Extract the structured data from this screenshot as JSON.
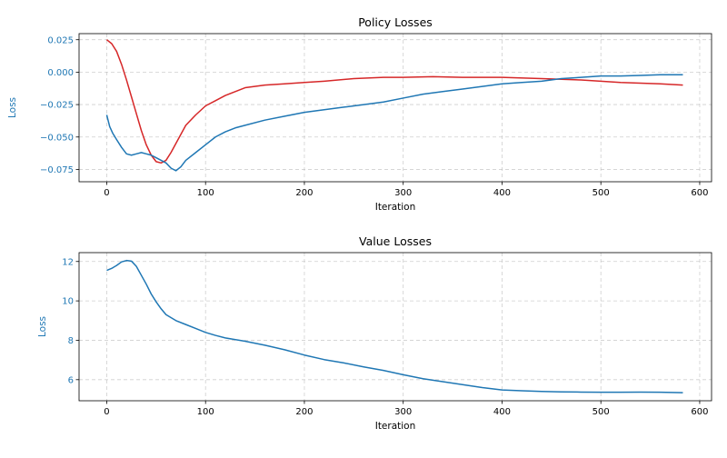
{
  "chart_data": [
    {
      "type": "line",
      "title": "Policy Losses",
      "xlabel": "Iteration",
      "ylabel": "Loss",
      "xlim": [
        -28,
        612
      ],
      "ylim": [
        -0.0845,
        0.0297
      ],
      "xticks": [
        "0",
        "100",
        "200",
        "300",
        "400",
        "500",
        "600"
      ],
      "xtick_values": [
        0,
        100,
        200,
        300,
        400,
        500,
        600
      ],
      "yticks": [
        "−0.075",
        "−0.050",
        "−0.025",
        "0.000",
        "0.025"
      ],
      "ytick_values": [
        -0.075,
        -0.05,
        -0.025,
        0.0,
        0.025
      ],
      "grid": true,
      "ytick_color": "#1f77b4",
      "series": [
        {
          "color": "#d62728",
          "x": [
            0,
            5,
            10,
            15,
            20,
            25,
            30,
            35,
            40,
            45,
            50,
            55,
            60,
            65,
            70,
            75,
            80,
            90,
            100,
            110,
            120,
            130,
            140,
            160,
            180,
            200,
            220,
            250,
            280,
            300,
            330,
            360,
            400,
            440,
            480,
            520,
            560,
            583
          ],
          "y": [
            0.025,
            0.022,
            0.016,
            0.006,
            -0.006,
            -0.019,
            -0.032,
            -0.045,
            -0.056,
            -0.064,
            -0.069,
            -0.07,
            -0.068,
            -0.062,
            -0.055,
            -0.048,
            -0.041,
            -0.033,
            -0.026,
            -0.022,
            -0.018,
            -0.015,
            -0.012,
            -0.01,
            -0.009,
            -0.008,
            -0.007,
            -0.005,
            -0.004,
            -0.004,
            -0.0035,
            -0.004,
            -0.004,
            -0.005,
            -0.006,
            -0.008,
            -0.009,
            -0.01
          ]
        },
        {
          "color": "#1f77b4",
          "x": [
            0,
            3,
            6,
            10,
            15,
            20,
            25,
            30,
            35,
            40,
            45,
            50,
            55,
            60,
            65,
            70,
            75,
            80,
            90,
            100,
            110,
            120,
            130,
            140,
            160,
            180,
            200,
            220,
            240,
            260,
            280,
            300,
            320,
            340,
            360,
            380,
            400,
            420,
            440,
            460,
            480,
            500,
            520,
            540,
            560,
            583
          ],
          "y": [
            -0.033,
            -0.042,
            -0.047,
            -0.052,
            -0.058,
            -0.063,
            -0.064,
            -0.063,
            -0.062,
            -0.063,
            -0.064,
            -0.066,
            -0.068,
            -0.07,
            -0.074,
            -0.076,
            -0.073,
            -0.068,
            -0.062,
            -0.056,
            -0.05,
            -0.046,
            -0.043,
            -0.041,
            -0.037,
            -0.034,
            -0.031,
            -0.029,
            -0.027,
            -0.025,
            -0.023,
            -0.02,
            -0.017,
            -0.015,
            -0.013,
            -0.011,
            -0.009,
            -0.008,
            -0.007,
            -0.005,
            -0.004,
            -0.003,
            -0.003,
            -0.0025,
            -0.002,
            -0.002
          ]
        }
      ]
    },
    {
      "type": "line",
      "title": "Value Losses",
      "xlabel": "Iteration",
      "ylabel": "Loss",
      "xlim": [
        -28,
        612
      ],
      "ylim": [
        4.93,
        12.45
      ],
      "xticks": [
        "0",
        "100",
        "200",
        "300",
        "400",
        "500",
        "600"
      ],
      "xtick_values": [
        0,
        100,
        200,
        300,
        400,
        500,
        600
      ],
      "yticks": [
        "6",
        "8",
        "10",
        "12"
      ],
      "ytick_values": [
        6,
        8,
        10,
        12
      ],
      "grid": true,
      "ytick_color": "#1f77b4",
      "series": [
        {
          "color": "#1f77b4",
          "x": [
            0,
            5,
            10,
            15,
            20,
            25,
            30,
            35,
            40,
            45,
            50,
            55,
            60,
            70,
            80,
            90,
            100,
            110,
            120,
            140,
            160,
            180,
            200,
            220,
            240,
            260,
            280,
            300,
            320,
            340,
            360,
            380,
            400,
            420,
            440,
            460,
            480,
            500,
            520,
            540,
            560,
            583
          ],
          "y": [
            11.55,
            11.65,
            11.8,
            11.98,
            12.05,
            12.02,
            11.75,
            11.3,
            10.85,
            10.35,
            9.95,
            9.6,
            9.3,
            9.0,
            8.8,
            8.6,
            8.4,
            8.25,
            8.12,
            7.95,
            7.75,
            7.52,
            7.25,
            7.02,
            6.85,
            6.65,
            6.47,
            6.25,
            6.05,
            5.9,
            5.75,
            5.6,
            5.48,
            5.44,
            5.4,
            5.38,
            5.37,
            5.36,
            5.36,
            5.37,
            5.36,
            5.34
          ]
        }
      ]
    }
  ]
}
